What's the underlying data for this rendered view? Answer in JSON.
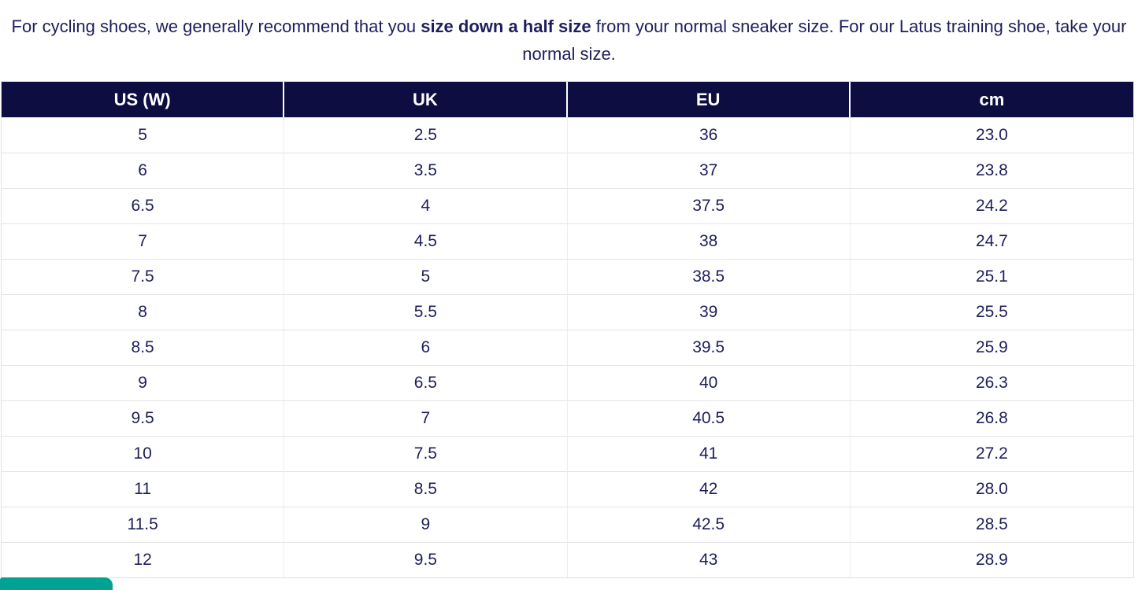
{
  "intro": {
    "prefix": "For cycling shoes, we generally recommend that you ",
    "bold": "size down a half size",
    "suffix": " from your normal sneaker size. For our Latus training shoe, take your normal size."
  },
  "table": {
    "columns": [
      "US (W)",
      "UK",
      "EU",
      "cm"
    ],
    "rows": [
      [
        "5",
        "2.5",
        "36",
        "23.0"
      ],
      [
        "6",
        "3.5",
        "37",
        "23.8"
      ],
      [
        "6.5",
        "4",
        "37.5",
        "24.2"
      ],
      [
        "7",
        "4.5",
        "38",
        "24.7"
      ],
      [
        "7.5",
        "5",
        "38.5",
        "25.1"
      ],
      [
        "8",
        "5.5",
        "39",
        "25.5"
      ],
      [
        "8.5",
        "6",
        "39.5",
        "25.9"
      ],
      [
        "9",
        "6.5",
        "40",
        "26.3"
      ],
      [
        "9.5",
        "7",
        "40.5",
        "26.8"
      ],
      [
        "10",
        "7.5",
        "41",
        "27.2"
      ],
      [
        "11",
        "8.5",
        "42",
        "28.0"
      ],
      [
        "11.5",
        "9",
        "42.5",
        "28.5"
      ],
      [
        "12",
        "9.5",
        "43",
        "28.9"
      ]
    ]
  },
  "colors": {
    "header_bg": "#0d0d42",
    "text_navy": "#1e1e5c",
    "row_border": "#e4e4e4",
    "chat_accent": "#00a294"
  }
}
